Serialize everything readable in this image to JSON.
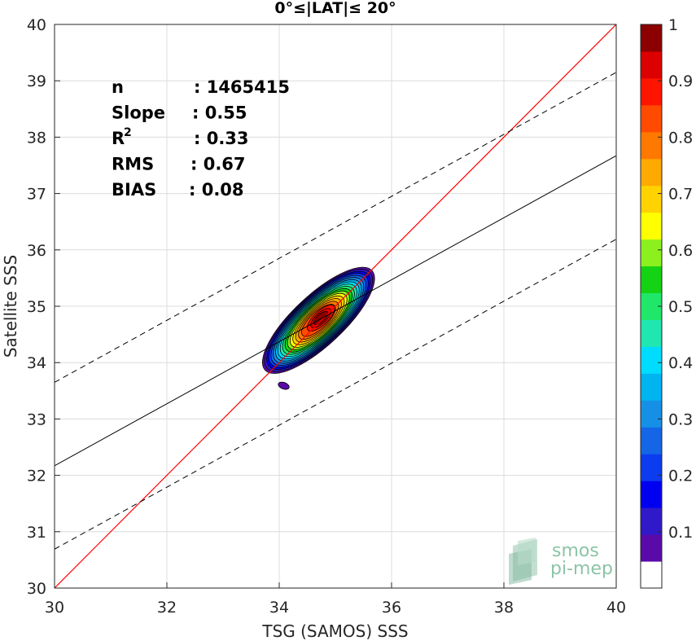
{
  "chart_data": {
    "type": "contour",
    "title": "0°≤|LAT|≤ 20°",
    "xlabel": "TSG (SAMOS) SSS",
    "ylabel": "Satellite SSS",
    "xlim": [
      30,
      40
    ],
    "ylim": [
      30,
      40
    ],
    "xticks": [
      "30",
      "32",
      "34",
      "36",
      "38",
      "40"
    ],
    "yticks": [
      "30",
      "31",
      "32",
      "33",
      "34",
      "35",
      "36",
      "37",
      "38",
      "39",
      "40"
    ],
    "grid": true,
    "stats": [
      {
        "key": "n",
        "value": ": 1465415"
      },
      {
        "key": "Slope",
        "value": ": 0.55"
      },
      {
        "key": "R",
        "sup": "2",
        "value": ": 0.33"
      },
      {
        "key": "RMS",
        "value": ": 0.67"
      },
      {
        "key": "BIAS",
        "value": ": 0.08"
      }
    ],
    "identity_line": {
      "slope": 1,
      "intercept": 0,
      "color": "#ff0000"
    },
    "regression_line": {
      "slope": 0.55,
      "intercept": 15.67,
      "color": "#000000"
    },
    "envelope_lines": {
      "offset": 1.48,
      "color": "#000000",
      "style": "dashed"
    },
    "density": {
      "center": [
        34.7,
        34.75
      ],
      "spread_major": 1.3,
      "spread_minor": 0.33,
      "angle_deg": 43
    },
    "colorbar": {
      "ticks": [
        "0.1",
        "0.2",
        "0.3",
        "0.4",
        "0.5",
        "0.6",
        "0.7",
        "0.8",
        "0.9",
        "1"
      ],
      "range": [
        0,
        1
      ],
      "colors": [
        "#ffffff",
        "#5a0aa8",
        "#3019c8",
        "#0000f0",
        "#0c3cf0",
        "#1466e6",
        "#1690e6",
        "#00b4f0",
        "#00dcff",
        "#20e6b0",
        "#20e66a",
        "#14d214",
        "#8cf01e",
        "#ffff00",
        "#ffd200",
        "#ffaa00",
        "#ff7800",
        "#ff4b00",
        "#ff1400",
        "#dc0000",
        "#8c0000"
      ]
    }
  },
  "watermark": {
    "line1": "smos",
    "line2": "pi-mep"
  }
}
